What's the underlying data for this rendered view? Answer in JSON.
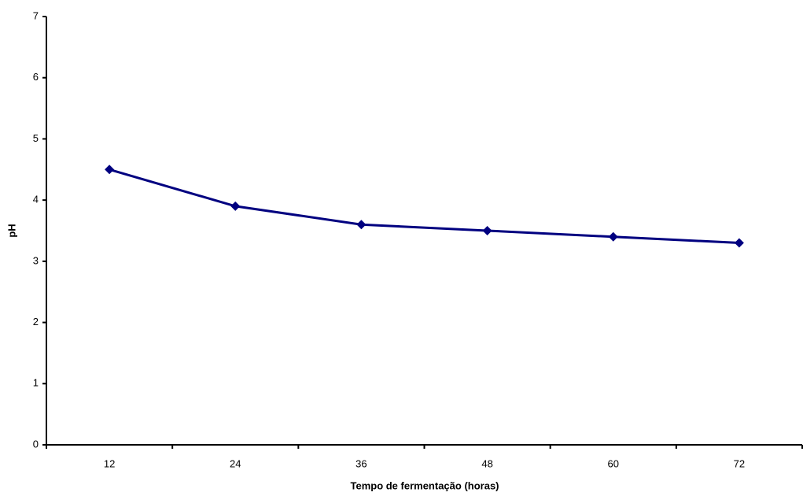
{
  "chart_data": {
    "type": "line",
    "x_label": "Tempo de fermentação (horas)",
    "y_label": "pH",
    "categories": [
      "12",
      "24",
      "36",
      "48",
      "60",
      "72"
    ],
    "series": [
      {
        "name": "pH",
        "color": "#000080",
        "values": [
          4.5,
          3.9,
          3.6,
          3.5,
          3.4,
          3.3
        ]
      }
    ],
    "ylim": [
      0,
      7
    ],
    "yticks": [
      0,
      1,
      2,
      3,
      4,
      5,
      6,
      7
    ],
    "grid": false,
    "marker": "diamond"
  }
}
